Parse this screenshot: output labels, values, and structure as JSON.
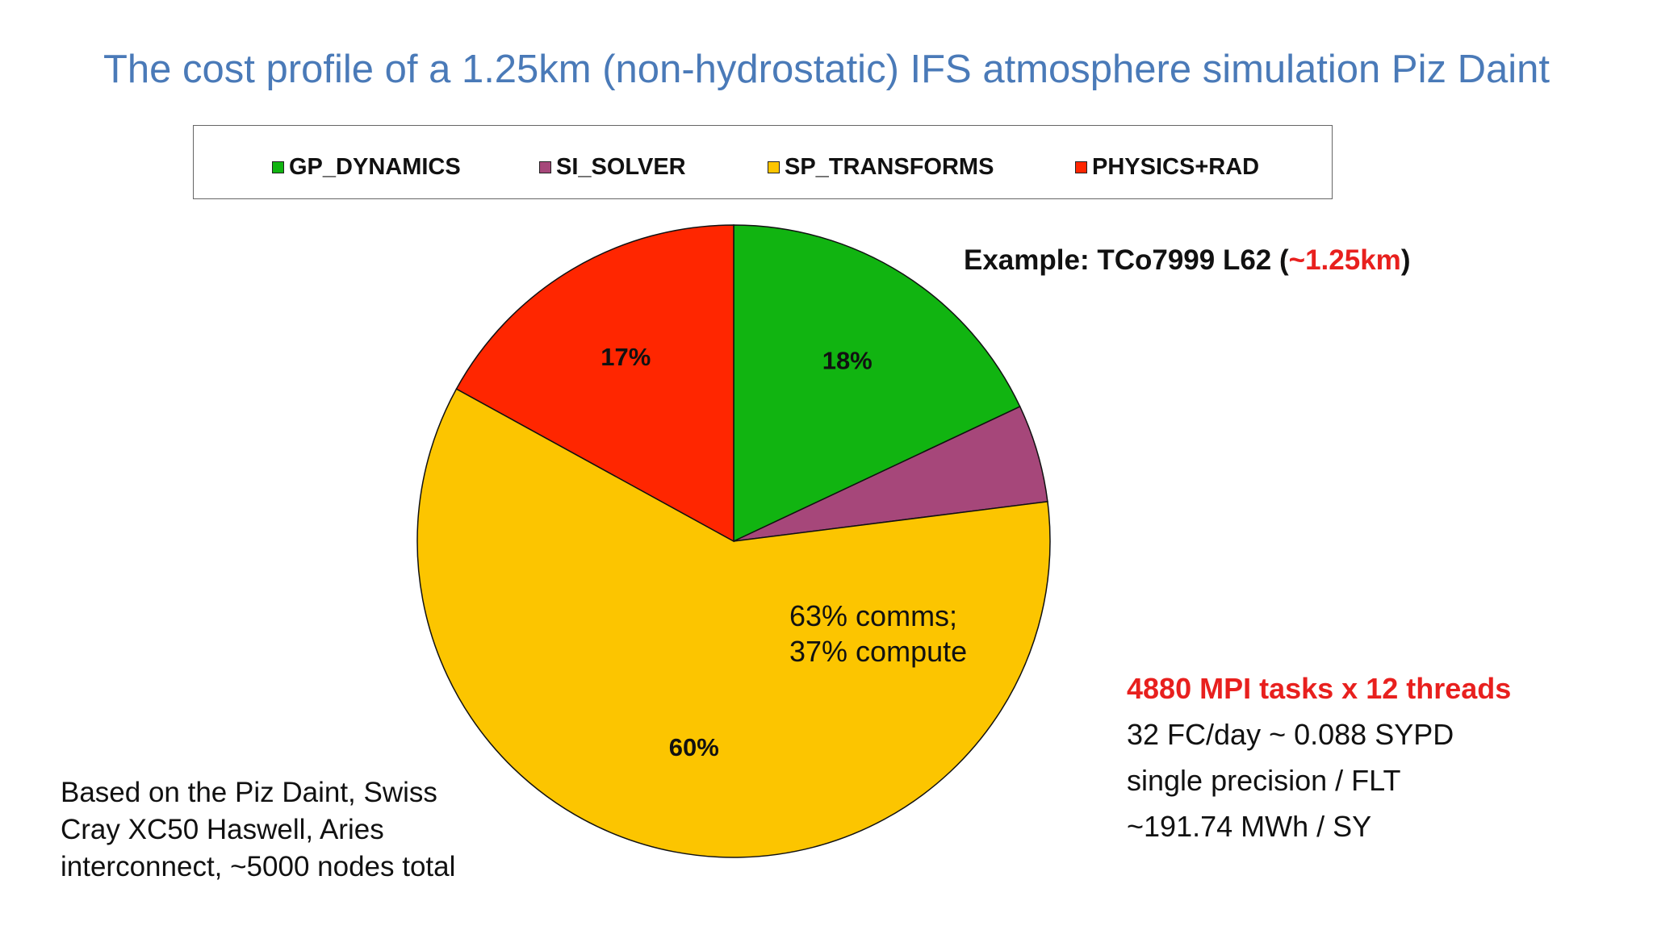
{
  "title": "The cost profile of a 1.25km (non-hydrostatic) IFS atmosphere simulation Piz Daint",
  "colors": {
    "title": "#4a7ab8",
    "gp_dynamics": "#11b411",
    "si_solver": "#a6477a",
    "sp_transforms": "#fcc500",
    "physics_rad": "#ff2600",
    "highlight": "#e8201e"
  },
  "chart_data": {
    "type": "pie",
    "title": "",
    "legend_position": "top",
    "start_angle_deg": 0,
    "direction": "clockwise",
    "slices": [
      {
        "name": "GP_DYNAMICS",
        "value": 18,
        "label": "18%",
        "color": "#11b411"
      },
      {
        "name": "SI_SOLVER",
        "value": 5,
        "label": "",
        "color": "#a6477a"
      },
      {
        "name": "SP_TRANSFORMS",
        "value": 60,
        "label": "60%",
        "color": "#fcc500"
      },
      {
        "name": "PHYSICS+RAD",
        "value": 17,
        "label": "17%",
        "color": "#ff2600"
      }
    ],
    "annotation": [
      "63% comms;",
      "37% compute"
    ]
  },
  "example": {
    "prefix": "Example: TCo7999 L62 (",
    "highlight": "~1.25km",
    "suffix": ")"
  },
  "notes_right": {
    "mpi": "4880 MPI tasks x 12 threads",
    "lines": [
      "32 FC/day ~ 0.088 SYPD",
      "single precision / FLT",
      "~191.74 MWh / SY"
    ]
  },
  "notes_left": [
    "Based on the Piz Daint, Swiss",
    "Cray XC50 Haswell, Aries",
    "interconnect, ~5000 nodes total"
  ]
}
